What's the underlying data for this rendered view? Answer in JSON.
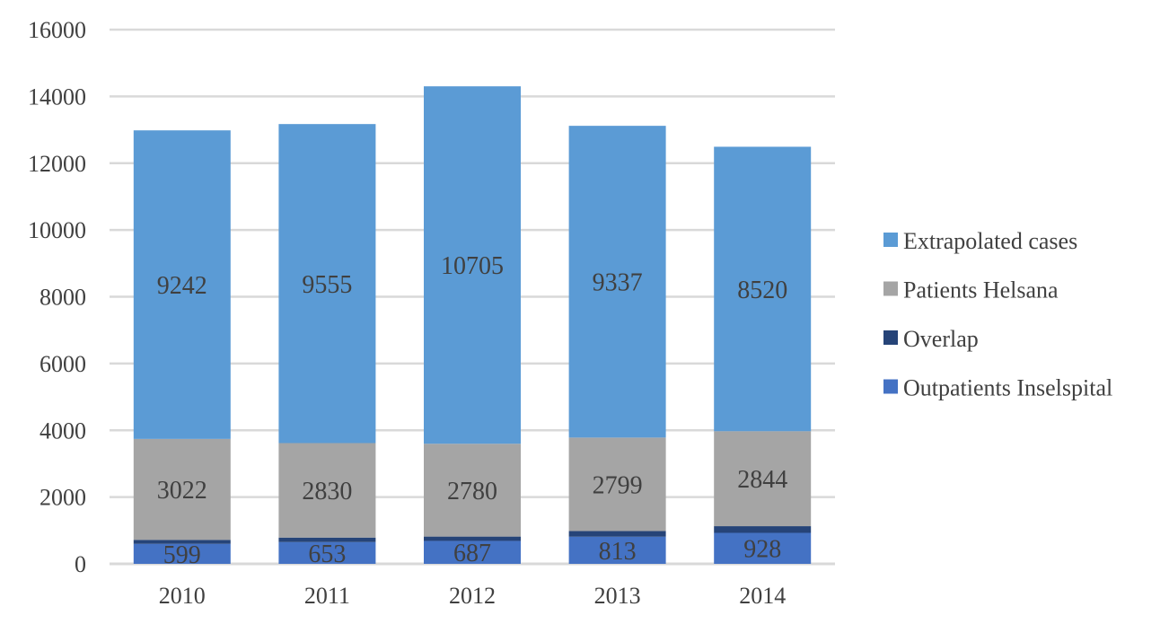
{
  "chart_data": {
    "type": "bar",
    "stacked": true,
    "title": "",
    "xlabel": "",
    "ylabel": "",
    "categories": [
      "2010",
      "2011",
      "2012",
      "2013",
      "2014"
    ],
    "ylim": [
      0,
      16000
    ],
    "yticks": [
      0,
      2000,
      4000,
      6000,
      8000,
      10000,
      12000,
      14000,
      16000
    ],
    "grid": true,
    "legend_position": "right",
    "series": [
      {
        "name": "Outpatients Inselspital",
        "values": [
          599,
          653,
          687,
          813,
          928
        ],
        "color": "#4472C4",
        "labeled": true
      },
      {
        "name": "Overlap",
        "values": [
          120,
          134,
          130,
          170,
          200
        ],
        "color": "#264478",
        "labeled": false
      },
      {
        "name": "Patients Helsana",
        "values": [
          3022,
          2830,
          2780,
          2799,
          2844
        ],
        "color": "#A5A5A5",
        "labeled": true
      },
      {
        "name": "Extrapolated cases",
        "values": [
          9242,
          9555,
          10705,
          9337,
          8520
        ],
        "color": "#5B9BD5",
        "labeled": true
      }
    ]
  }
}
